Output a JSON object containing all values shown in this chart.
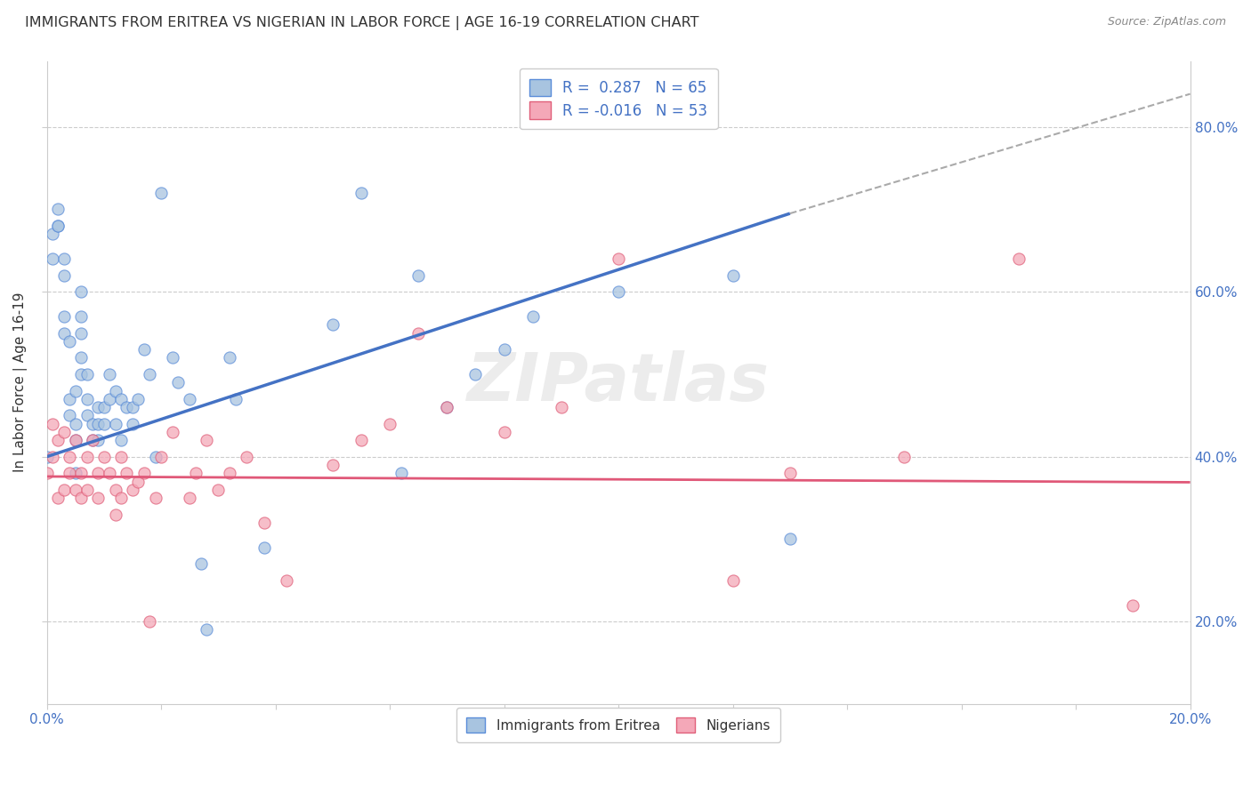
{
  "title": "IMMIGRANTS FROM ERITREA VS NIGERIAN IN LABOR FORCE | AGE 16-19 CORRELATION CHART",
  "source": "Source: ZipAtlas.com",
  "ylabel": "In Labor Force | Age 16-19",
  "xlim": [
    0.0,
    0.2
  ],
  "ylim": [
    0.1,
    0.88
  ],
  "xticks": [
    0.0,
    0.02,
    0.04,
    0.06,
    0.08,
    0.1,
    0.12,
    0.14,
    0.16,
    0.18,
    0.2
  ],
  "xtick_labels_show": [
    true,
    false,
    false,
    false,
    false,
    false,
    false,
    false,
    false,
    false,
    true
  ],
  "yticks": [
    0.2,
    0.4,
    0.6,
    0.8
  ],
  "legend_r1": "R =  0.287",
  "legend_n1": "N = 65",
  "legend_r2": "R = -0.016",
  "legend_n2": "N = 53",
  "color_eritrea_fill": "#a8c4e0",
  "color_eritrea_edge": "#5b8dd9",
  "color_nigerian_fill": "#f4a8b8",
  "color_nigerian_edge": "#e0607a",
  "color_line_eritrea": "#4472c4",
  "color_line_nigerian": "#e05878",
  "color_legend_blue": "#4472c4",
  "color_axis_blue": "#4472c4",
  "scatter_alpha": 0.75,
  "scatter_size": 90,
  "eritrea_x": [
    0.001,
    0.001,
    0.002,
    0.002,
    0.002,
    0.003,
    0.003,
    0.003,
    0.003,
    0.004,
    0.004,
    0.004,
    0.005,
    0.005,
    0.005,
    0.005,
    0.006,
    0.006,
    0.006,
    0.006,
    0.006,
    0.007,
    0.007,
    0.007,
    0.008,
    0.008,
    0.009,
    0.009,
    0.009,
    0.01,
    0.01,
    0.011,
    0.011,
    0.012,
    0.012,
    0.013,
    0.013,
    0.014,
    0.015,
    0.015,
    0.016,
    0.017,
    0.018,
    0.019,
    0.02,
    0.022,
    0.023,
    0.025,
    0.027,
    0.028,
    0.032,
    0.033,
    0.038,
    0.05,
    0.055,
    0.062,
    0.065,
    0.07,
    0.075,
    0.08,
    0.085,
    0.1,
    0.12,
    0.13,
    0.0
  ],
  "eritrea_y": [
    0.64,
    0.67,
    0.68,
    0.68,
    0.7,
    0.55,
    0.57,
    0.62,
    0.64,
    0.45,
    0.47,
    0.54,
    0.38,
    0.42,
    0.44,
    0.48,
    0.5,
    0.52,
    0.55,
    0.57,
    0.6,
    0.45,
    0.47,
    0.5,
    0.42,
    0.44,
    0.42,
    0.44,
    0.46,
    0.44,
    0.46,
    0.47,
    0.5,
    0.44,
    0.48,
    0.42,
    0.47,
    0.46,
    0.44,
    0.46,
    0.47,
    0.53,
    0.5,
    0.4,
    0.72,
    0.52,
    0.49,
    0.47,
    0.27,
    0.19,
    0.52,
    0.47,
    0.29,
    0.56,
    0.72,
    0.38,
    0.62,
    0.46,
    0.5,
    0.53,
    0.57,
    0.6,
    0.62,
    0.3,
    0.4
  ],
  "nigerian_x": [
    0.0,
    0.001,
    0.001,
    0.002,
    0.002,
    0.003,
    0.003,
    0.004,
    0.004,
    0.005,
    0.005,
    0.006,
    0.006,
    0.007,
    0.007,
    0.008,
    0.009,
    0.009,
    0.01,
    0.011,
    0.012,
    0.012,
    0.013,
    0.013,
    0.014,
    0.015,
    0.016,
    0.017,
    0.018,
    0.019,
    0.02,
    0.022,
    0.025,
    0.026,
    0.028,
    0.03,
    0.032,
    0.035,
    0.038,
    0.042,
    0.05,
    0.055,
    0.06,
    0.065,
    0.07,
    0.08,
    0.09,
    0.1,
    0.12,
    0.13,
    0.15,
    0.17,
    0.19
  ],
  "nigerian_y": [
    0.38,
    0.4,
    0.44,
    0.35,
    0.42,
    0.36,
    0.43,
    0.38,
    0.4,
    0.36,
    0.42,
    0.35,
    0.38,
    0.36,
    0.4,
    0.42,
    0.35,
    0.38,
    0.4,
    0.38,
    0.33,
    0.36,
    0.35,
    0.4,
    0.38,
    0.36,
    0.37,
    0.38,
    0.2,
    0.35,
    0.4,
    0.43,
    0.35,
    0.38,
    0.42,
    0.36,
    0.38,
    0.4,
    0.32,
    0.25,
    0.39,
    0.42,
    0.44,
    0.55,
    0.46,
    0.43,
    0.46,
    0.64,
    0.25,
    0.38,
    0.4,
    0.64,
    0.22
  ],
  "line_eritrea_x0": 0.0,
  "line_eritrea_y0": 0.4,
  "line_eritrea_x1": 0.13,
  "line_eritrea_y1": 0.695,
  "line_dash_x0": 0.13,
  "line_dash_y0": 0.695,
  "line_dash_x1": 0.2,
  "line_dash_y1": 0.84,
  "line_nigerian_x0": 0.0,
  "line_nigerian_y0": 0.376,
  "line_nigerian_x1": 0.2,
  "line_nigerian_y1": 0.369
}
